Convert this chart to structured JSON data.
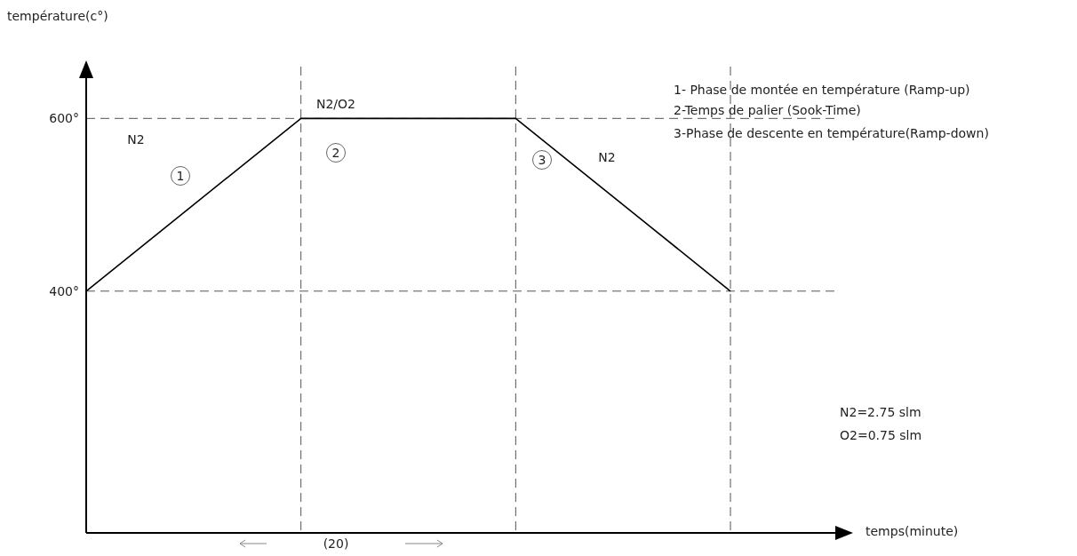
{
  "chart_data": {
    "type": "line",
    "ylabel": "température(c°)",
    "xlabel": "temps(minute)",
    "categories": [
      null,
      null,
      null,
      null
    ],
    "values": [
      400,
      600,
      600,
      400
    ],
    "color": "#000000",
    "ylim": [
      120,
      660
    ],
    "yticks": [
      {
        "value": 400,
        "label": "400°"
      },
      {
        "value": 600,
        "label": "600°"
      }
    ],
    "grid": true,
    "tick_labels": "y",
    "marker": "none",
    "line_style": "solid",
    "annotations": [
      "N2",
      "N2/O2",
      "N2",
      "1",
      "2",
      "3",
      "1- Phase de montée en température (Ramp-up)",
      "2-Temps de palier (Sook-Time)",
      "3-Phase de descente en température(Ramp-down)",
      "N2=2.75 slm",
      "O2=0.75 slm",
      "(20)"
    ]
  }
}
